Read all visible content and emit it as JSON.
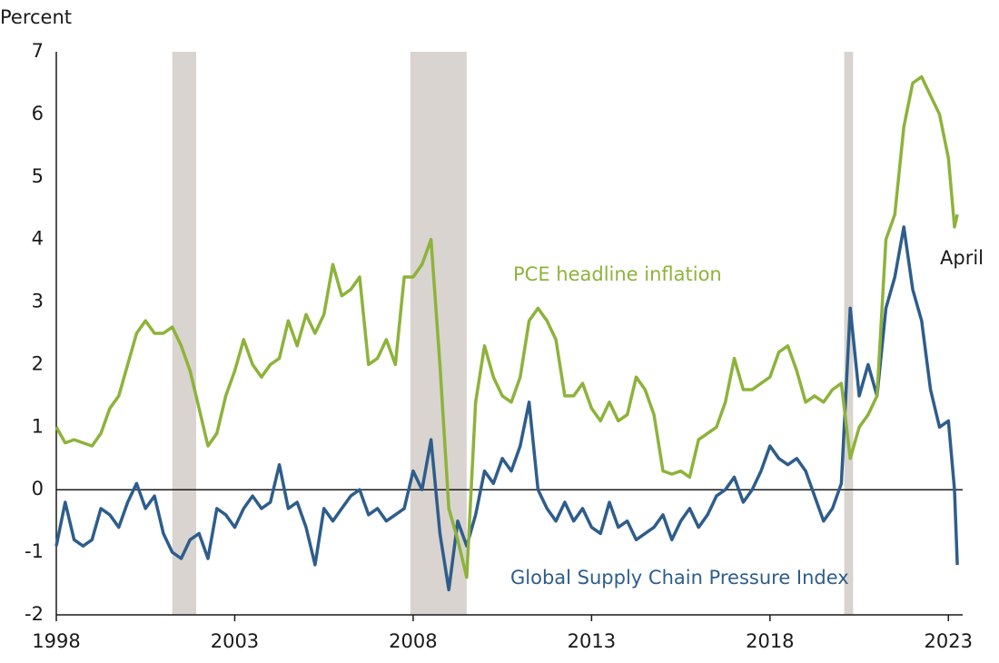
{
  "chart_data": {
    "type": "line",
    "y_label": "Percent",
    "annotations": [
      {
        "text": "PCE headline inflation",
        "color": "#8db33a"
      },
      {
        "text": "Global Supply Chain Pressure Index",
        "color": "#2e5d8c"
      },
      {
        "text": "April",
        "color": "#1a1a1a"
      }
    ],
    "recessions": [
      [
        2001.25,
        2001.92
      ],
      [
        2007.92,
        2009.5
      ],
      [
        2020.08,
        2020.33
      ]
    ],
    "recession_color": "#d9d4cf",
    "x": [
      1998.0,
      1998.25,
      1998.5,
      1998.75,
      1999.0,
      1999.25,
      1999.5,
      1999.75,
      2000.0,
      2000.25,
      2000.5,
      2000.75,
      2001.0,
      2001.25,
      2001.5,
      2001.75,
      2002.0,
      2002.25,
      2002.5,
      2002.75,
      2003.0,
      2003.25,
      2003.5,
      2003.75,
      2004.0,
      2004.25,
      2004.5,
      2004.75,
      2005.0,
      2005.25,
      2005.5,
      2005.75,
      2006.0,
      2006.25,
      2006.5,
      2006.75,
      2007.0,
      2007.25,
      2007.5,
      2007.75,
      2008.0,
      2008.25,
      2008.5,
      2008.75,
      2009.0,
      2009.25,
      2009.5,
      2009.75,
      2010.0,
      2010.25,
      2010.5,
      2010.75,
      2011.0,
      2011.25,
      2011.5,
      2011.75,
      2012.0,
      2012.25,
      2012.5,
      2012.75,
      2013.0,
      2013.25,
      2013.5,
      2013.75,
      2014.0,
      2014.25,
      2014.5,
      2014.75,
      2015.0,
      2015.25,
      2015.5,
      2015.75,
      2016.0,
      2016.25,
      2016.5,
      2016.75,
      2017.0,
      2017.25,
      2017.5,
      2017.75,
      2018.0,
      2018.25,
      2018.5,
      2018.75,
      2019.0,
      2019.25,
      2019.5,
      2019.75,
      2020.0,
      2020.25,
      2020.5,
      2020.75,
      2021.0,
      2021.25,
      2021.5,
      2021.75,
      2022.0,
      2022.25,
      2022.5,
      2022.75,
      2023.0,
      2023.17,
      2023.25
    ],
    "series": [
      {
        "name": "PCE headline inflation",
        "color": "#8db33a",
        "values": [
          1.0,
          0.75,
          0.8,
          0.75,
          0.7,
          0.9,
          1.3,
          1.5,
          2.0,
          2.5,
          2.7,
          2.5,
          2.5,
          2.6,
          2.3,
          1.9,
          1.3,
          0.7,
          0.9,
          1.5,
          1.9,
          2.4,
          2.0,
          1.8,
          2.0,
          2.1,
          2.7,
          2.3,
          2.8,
          2.5,
          2.8,
          3.6,
          3.1,
          3.2,
          3.4,
          2.0,
          2.1,
          2.4,
          2.0,
          3.4,
          3.4,
          3.6,
          4.0,
          2.0,
          -0.3,
          -0.8,
          -1.4,
          1.4,
          2.3,
          1.8,
          1.5,
          1.4,
          1.8,
          2.7,
          2.9,
          2.7,
          2.4,
          1.5,
          1.5,
          1.7,
          1.3,
          1.1,
          1.4,
          1.1,
          1.2,
          1.8,
          1.6,
          1.2,
          0.3,
          0.25,
          0.3,
          0.2,
          0.8,
          0.9,
          1.0,
          1.4,
          2.1,
          1.6,
          1.6,
          1.7,
          1.8,
          2.2,
          2.3,
          1.9,
          1.4,
          1.5,
          1.4,
          1.6,
          1.7,
          0.5,
          1.0,
          1.2,
          1.5,
          4.0,
          4.4,
          5.8,
          6.5,
          6.6,
          6.3,
          6.0,
          5.3,
          4.2,
          4.4
        ]
      },
      {
        "name": "Global Supply Chain Pressure Index",
        "color": "#2e5d8c",
        "values": [
          -0.9,
          -0.2,
          -0.8,
          -0.9,
          -0.8,
          -0.3,
          -0.4,
          -0.6,
          -0.2,
          0.1,
          -0.3,
          -0.1,
          -0.7,
          -1.0,
          -1.1,
          -0.8,
          -0.7,
          -1.1,
          -0.3,
          -0.4,
          -0.6,
          -0.3,
          -0.1,
          -0.3,
          -0.2,
          0.4,
          -0.3,
          -0.2,
          -0.6,
          -1.2,
          -0.3,
          -0.5,
          -0.3,
          -0.1,
          0.0,
          -0.4,
          -0.3,
          -0.5,
          -0.4,
          -0.3,
          0.3,
          0.0,
          0.8,
          -0.7,
          -1.6,
          -0.5,
          -0.9,
          -0.4,
          0.3,
          0.1,
          0.5,
          0.3,
          0.7,
          1.4,
          0.0,
          -0.3,
          -0.5,
          -0.2,
          -0.5,
          -0.3,
          -0.6,
          -0.7,
          -0.2,
          -0.6,
          -0.5,
          -0.8,
          -0.7,
          -0.6,
          -0.4,
          -0.8,
          -0.5,
          -0.3,
          -0.6,
          -0.4,
          -0.1,
          0.0,
          0.2,
          -0.2,
          0.0,
          0.3,
          0.7,
          0.5,
          0.4,
          0.5,
          0.3,
          -0.1,
          -0.5,
          -0.3,
          0.1,
          2.9,
          1.5,
          2.0,
          1.5,
          2.9,
          3.4,
          4.2,
          3.2,
          2.7,
          1.6,
          1.0,
          1.1,
          0.0,
          -1.2
        ]
      }
    ],
    "xlim": [
      1998,
      2023.4
    ],
    "xticks": [
      1998,
      2003,
      2008,
      2013,
      2018,
      2023
    ],
    "ylim": [
      -2,
      7
    ],
    "yticks": [
      -2,
      -1,
      0,
      1,
      2,
      3,
      4,
      5,
      6,
      7
    ]
  }
}
